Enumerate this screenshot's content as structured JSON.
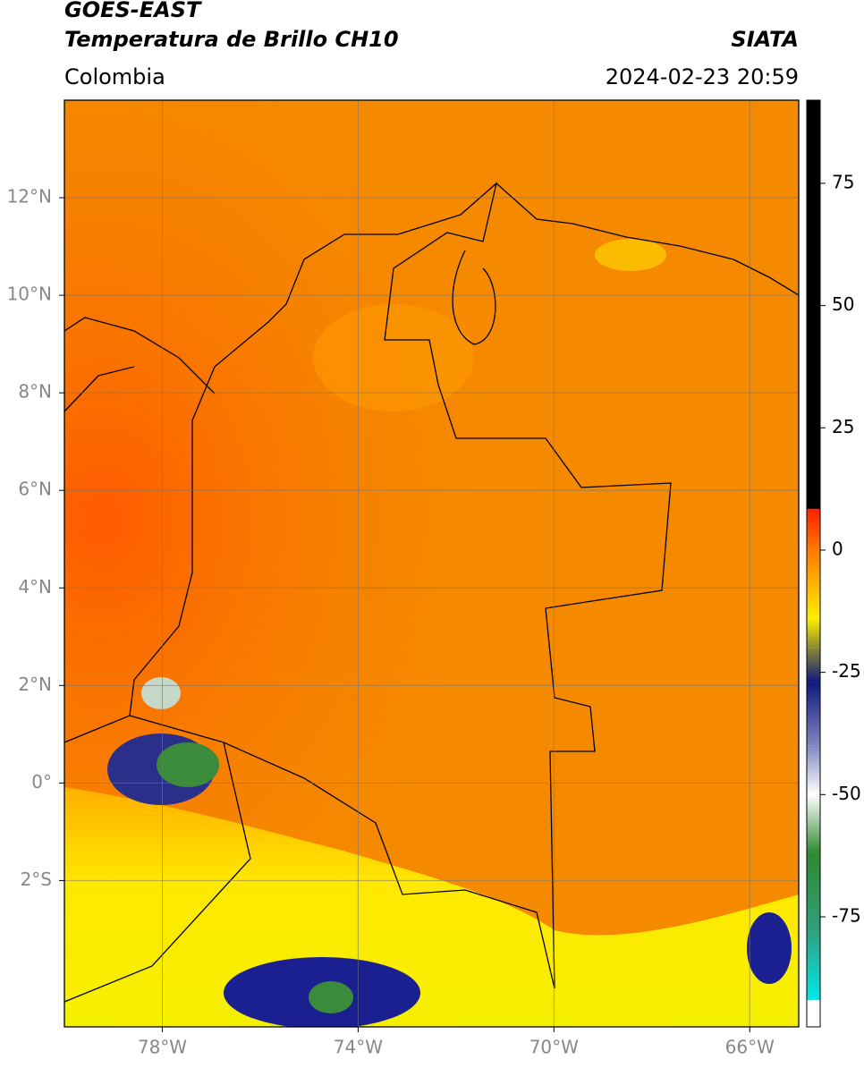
{
  "header": {
    "title": "GOES-EAST",
    "subtitle": "Temperatura de Brillo CH10",
    "region": "Colombia",
    "source": "SIATA",
    "datetime": "2024-02-23 20:59"
  },
  "map": {
    "xlim": [
      -80,
      -65
    ],
    "ylim": [
      -5,
      14
    ],
    "grid": true,
    "xticks": [
      {
        "value": -78,
        "label": "78°W"
      },
      {
        "value": -74,
        "label": "74°W"
      },
      {
        "value": -70,
        "label": "70°W"
      },
      {
        "value": -66,
        "label": "66°W"
      }
    ],
    "yticks": [
      {
        "value": 12,
        "label": "12°N"
      },
      {
        "value": 10,
        "label": "10°N"
      },
      {
        "value": 8,
        "label": "8°N"
      },
      {
        "value": 6,
        "label": "6°N"
      },
      {
        "value": 4,
        "label": "4°N"
      },
      {
        "value": 2,
        "label": "2°N"
      },
      {
        "value": 0,
        "label": "0°"
      },
      {
        "value": -2,
        "label": "2°S"
      }
    ]
  },
  "colorbar": {
    "lim": [
      -97.5,
      92
    ],
    "ticks": [
      75,
      50,
      25,
      0,
      -25,
      -50,
      -75
    ],
    "stops": [
      {
        "value": 92,
        "color": "#000000"
      },
      {
        "value": 8.5,
        "color": "#000000"
      },
      {
        "value": 8.4,
        "color": "#ff2000"
      },
      {
        "value": 0,
        "color": "#ff7a00"
      },
      {
        "value": -14,
        "color": "#ffee00"
      },
      {
        "value": -20,
        "color": "#8a8a30"
      },
      {
        "value": -27,
        "color": "#101880"
      },
      {
        "value": -40,
        "color": "#8088c0"
      },
      {
        "value": -50,
        "color": "#ffffff"
      },
      {
        "value": -62,
        "color": "#2e8a2e"
      },
      {
        "value": -78,
        "color": "#30a080"
      },
      {
        "value": -92,
        "color": "#00e8e8"
      },
      {
        "value": -92.1,
        "color": "#ffffff"
      },
      {
        "value": -97.5,
        "color": "#ffffff"
      }
    ]
  }
}
